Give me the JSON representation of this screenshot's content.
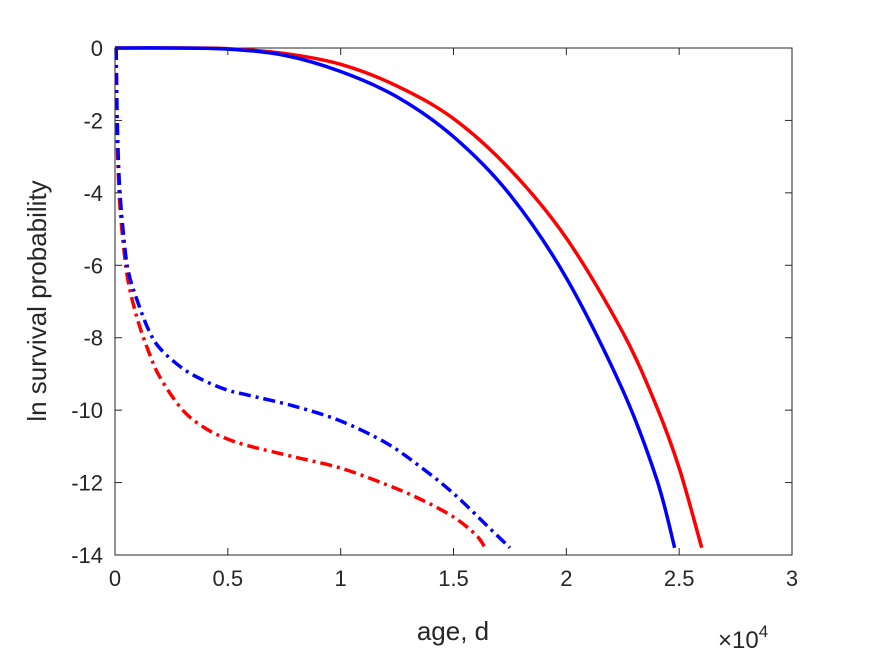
{
  "chart_data": {
    "type": "line",
    "title": "",
    "xlabel": "age, d",
    "ylabel": "ln survival probability",
    "x_exponent_label": {
      "base": "×10",
      "exponent": "4"
    },
    "xlim": [
      0,
      3
    ],
    "ylim": [
      -14,
      0
    ],
    "x_ticks": [
      0,
      0.5,
      1,
      1.5,
      2,
      2.5,
      3
    ],
    "x_tick_labels": [
      "0",
      "0.5",
      "1",
      "1.5",
      "2",
      "2.5",
      "3"
    ],
    "y_ticks": [
      0,
      -2,
      -4,
      -6,
      -8,
      -10,
      -12,
      -14
    ],
    "y_tick_labels": [
      "0",
      "-2",
      "-4",
      "-6",
      "-8",
      "-10",
      "-12",
      "-14"
    ],
    "grid": false,
    "series": [
      {
        "color": "#ff0000",
        "style": "solid",
        "x": [
          0,
          0.25,
          0.5,
          0.75,
          1.0,
          1.25,
          1.5,
          1.75,
          2.0,
          2.25,
          2.4,
          2.5,
          2.6
        ],
        "y": [
          0,
          0,
          -0.02,
          -0.15,
          -0.45,
          -1.05,
          -1.95,
          -3.35,
          -5.25,
          -7.85,
          -9.9,
          -11.6,
          -13.8
        ]
      },
      {
        "color": "#0000ff",
        "style": "solid",
        "x": [
          0,
          0.25,
          0.5,
          0.75,
          1.0,
          1.25,
          1.5,
          1.75,
          2.0,
          2.25,
          2.4,
          2.48
        ],
        "y": [
          0,
          0,
          -0.03,
          -0.2,
          -0.65,
          -1.35,
          -2.45,
          -4.05,
          -6.35,
          -9.45,
          -11.9,
          -13.8
        ]
      },
      {
        "color": "#ff0000",
        "style": "dashdot",
        "x": [
          0.005,
          0.01,
          0.02,
          0.04,
          0.06,
          0.1,
          0.15,
          0.2,
          0.3,
          0.4,
          0.5,
          0.6,
          0.8,
          1.0,
          1.2,
          1.35,
          1.5,
          1.6,
          1.64
        ],
        "y": [
          0,
          -2.5,
          -4.2,
          -5.6,
          -6.5,
          -7.5,
          -8.4,
          -9.1,
          -10.0,
          -10.5,
          -10.8,
          -11.0,
          -11.3,
          -11.6,
          -12.05,
          -12.45,
          -12.95,
          -13.45,
          -13.8
        ]
      },
      {
        "color": "#0000ff",
        "style": "dashdot",
        "x": [
          0.005,
          0.01,
          0.02,
          0.04,
          0.06,
          0.1,
          0.15,
          0.2,
          0.3,
          0.4,
          0.5,
          0.6,
          0.8,
          1.0,
          1.2,
          1.35,
          1.5,
          1.65,
          1.75
        ],
        "y": [
          0,
          -2.0,
          -3.8,
          -5.3,
          -6.2,
          -7.0,
          -7.8,
          -8.3,
          -8.85,
          -9.2,
          -9.45,
          -9.6,
          -9.9,
          -10.3,
          -10.9,
          -11.55,
          -12.3,
          -13.2,
          -13.8
        ]
      }
    ]
  }
}
